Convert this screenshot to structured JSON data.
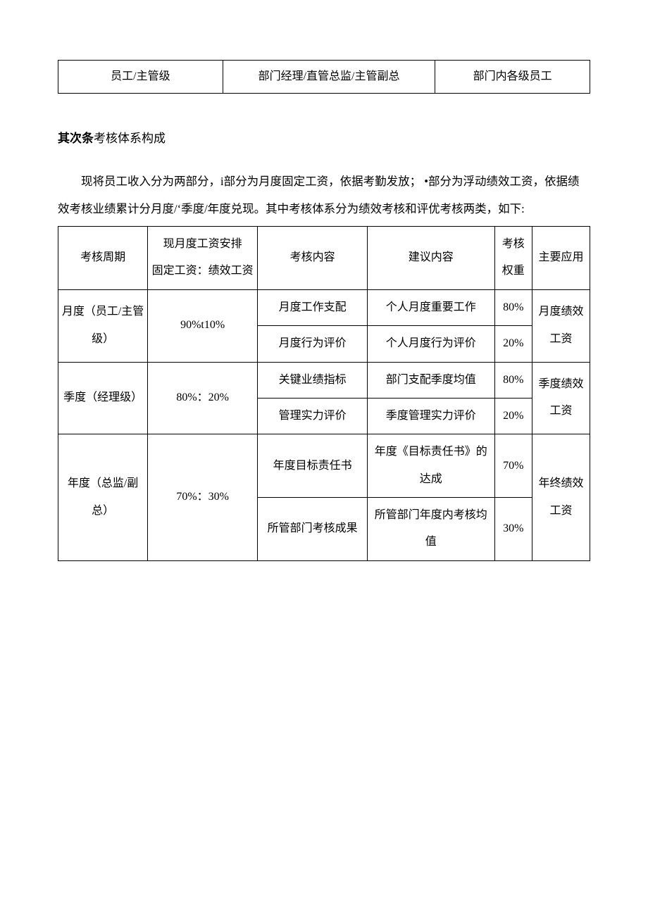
{
  "top_row": {
    "c1": "员工/主管级",
    "c2": "部门经理/直管总监/主管副总",
    "c3": "部门内各级员工"
  },
  "heading": {
    "bold": "其次条",
    "rest": "考核体系构成"
  },
  "paragraph": "现将员工收入分为两部分，i部分为月度固定工资，依据考勤发放； •部分为浮动绩效工资，依据绩效考核业绩累计分月度/‘季度/年度兑现。其中考核体系分为绩效考核和评优考核两类，如下:",
  "headers": {
    "period": "考核周期",
    "salary_l1": "现月度工资安排",
    "salary_l2": "固定工资：绩效工资",
    "content": "考核内容",
    "suggest": "建议内容",
    "weight": "考核权重",
    "app": "主要应用"
  },
  "rows": [
    {
      "period": "月度（员工/主管级）",
      "salary": "90%t10%",
      "sub": [
        {
          "content": "月度工作支配",
          "suggest": "个人月度重要工作",
          "weight": "80%"
        },
        {
          "content": "月度行为评价",
          "suggest": "个人月度行为评价",
          "weight": "20%"
        }
      ],
      "app": "月度绩效工资"
    },
    {
      "period": "季度（经理级）",
      "salary": "80%：20%",
      "sub": [
        {
          "content": "关键业绩指标",
          "suggest": "部门支配季度均值",
          "weight": "80%"
        },
        {
          "content": "管理实力评价",
          "suggest": "季度管理实力评价",
          "weight": "20%"
        }
      ],
      "app": "季度绩效工资"
    },
    {
      "period": "年度（总监/副总）",
      "salary": "70%：30%",
      "sub": [
        {
          "content": "年度目标责任书",
          "suggest": "年度《目标责任书》的达成",
          "weight": "70%"
        },
        {
          "content": "所管部门考核成果",
          "suggest": "所管部门年度内考核均值",
          "weight": "30%"
        }
      ],
      "app": "年终绩效工资"
    }
  ]
}
